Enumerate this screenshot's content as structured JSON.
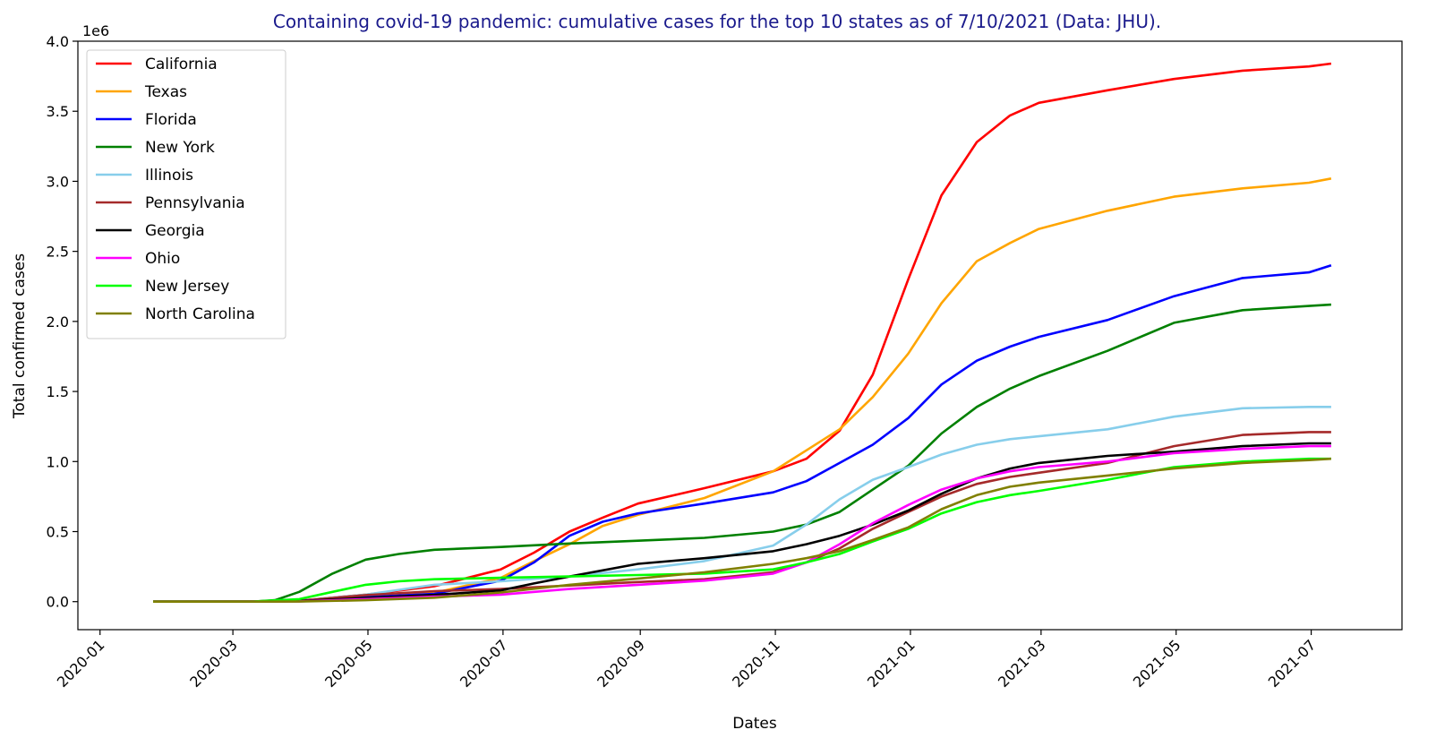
{
  "chart_data": {
    "type": "line",
    "title": "Containing covid-19 pandemic: cumulative cases for the top 10 states as of 7/10/2021 (Data: JHU).",
    "title_color": "#1a1a8c",
    "xlabel": "Dates",
    "ylabel": "Total confirmed cases",
    "y_scale_label": "1e6",
    "ylim": [
      -0.2,
      4.0
    ],
    "xlim": [
      "2019-12-22",
      "2021-08-11"
    ],
    "x_ticks": [
      "2020-01",
      "2020-03",
      "2020-05",
      "2020-07",
      "2020-09",
      "2020-11",
      "2021-01",
      "2021-03",
      "2021-05",
      "2021-07"
    ],
    "y_ticks": [
      "0.0",
      "0.5",
      "1.0",
      "1.5",
      "2.0",
      "2.5",
      "3.0",
      "3.5",
      "4.0"
    ],
    "legend_position": "upper-left",
    "series": [
      {
        "name": "California",
        "color": "#ff0000",
        "points": [
          [
            "2020-01-25",
            0
          ],
          [
            "2020-03-10",
            0.002
          ],
          [
            "2020-03-31",
            0.008
          ],
          [
            "2020-04-30",
            0.05
          ],
          [
            "2020-05-31",
            0.11
          ],
          [
            "2020-06-30",
            0.23
          ],
          [
            "2020-07-15",
            0.35
          ],
          [
            "2020-07-31",
            0.5
          ],
          [
            "2020-08-15",
            0.6
          ],
          [
            "2020-08-31",
            0.7
          ],
          [
            "2020-09-30",
            0.81
          ],
          [
            "2020-10-31",
            0.93
          ],
          [
            "2020-11-15",
            1.02
          ],
          [
            "2020-11-30",
            1.22
          ],
          [
            "2020-12-15",
            1.62
          ],
          [
            "2020-12-31",
            2.3
          ],
          [
            "2021-01-15",
            2.9
          ],
          [
            "2021-01-31",
            3.28
          ],
          [
            "2021-02-15",
            3.47
          ],
          [
            "2021-02-28",
            3.56
          ],
          [
            "2021-03-31",
            3.65
          ],
          [
            "2021-04-30",
            3.73
          ],
          [
            "2021-05-31",
            3.79
          ],
          [
            "2021-06-30",
            3.82
          ],
          [
            "2021-07-10",
            3.84
          ]
        ]
      },
      {
        "name": "Texas",
        "color": "#ffa500",
        "points": [
          [
            "2020-01-25",
            0
          ],
          [
            "2020-03-10",
            0
          ],
          [
            "2020-03-31",
            0.003
          ],
          [
            "2020-04-30",
            0.028
          ],
          [
            "2020-05-31",
            0.063
          ],
          [
            "2020-06-30",
            0.17
          ],
          [
            "2020-07-15",
            0.29
          ],
          [
            "2020-07-31",
            0.41
          ],
          [
            "2020-08-15",
            0.54
          ],
          [
            "2020-08-31",
            0.62
          ],
          [
            "2020-09-30",
            0.74
          ],
          [
            "2020-10-31",
            0.93
          ],
          [
            "2020-11-15",
            1.08
          ],
          [
            "2020-11-30",
            1.23
          ],
          [
            "2020-12-15",
            1.46
          ],
          [
            "2020-12-31",
            1.77
          ],
          [
            "2021-01-15",
            2.13
          ],
          [
            "2021-01-31",
            2.43
          ],
          [
            "2021-02-15",
            2.56
          ],
          [
            "2021-02-28",
            2.66
          ],
          [
            "2021-03-31",
            2.79
          ],
          [
            "2021-04-30",
            2.89
          ],
          [
            "2021-05-31",
            2.95
          ],
          [
            "2021-06-30",
            2.99
          ],
          [
            "2021-07-10",
            3.02
          ]
        ]
      },
      {
        "name": "Florida",
        "color": "#0000ff",
        "points": [
          [
            "2020-01-25",
            0
          ],
          [
            "2020-03-10",
            0
          ],
          [
            "2020-03-31",
            0.007
          ],
          [
            "2020-04-30",
            0.033
          ],
          [
            "2020-05-31",
            0.056
          ],
          [
            "2020-06-30",
            0.15
          ],
          [
            "2020-07-15",
            0.28
          ],
          [
            "2020-07-31",
            0.47
          ],
          [
            "2020-08-15",
            0.57
          ],
          [
            "2020-08-31",
            0.63
          ],
          [
            "2020-09-30",
            0.7
          ],
          [
            "2020-10-31",
            0.78
          ],
          [
            "2020-11-15",
            0.86
          ],
          [
            "2020-11-30",
            0.99
          ],
          [
            "2020-12-15",
            1.12
          ],
          [
            "2020-12-31",
            1.31
          ],
          [
            "2021-01-15",
            1.55
          ],
          [
            "2021-01-31",
            1.72
          ],
          [
            "2021-02-15",
            1.82
          ],
          [
            "2021-02-28",
            1.89
          ],
          [
            "2021-03-31",
            2.01
          ],
          [
            "2021-04-30",
            2.18
          ],
          [
            "2021-05-31",
            2.31
          ],
          [
            "2021-06-30",
            2.35
          ],
          [
            "2021-07-10",
            2.4
          ]
        ]
      },
      {
        "name": "New York",
        "color": "#008000",
        "points": [
          [
            "2020-01-25",
            0
          ],
          [
            "2020-03-10",
            0
          ],
          [
            "2020-03-20",
            0.01
          ],
          [
            "2020-03-31",
            0.07
          ],
          [
            "2020-04-15",
            0.2
          ],
          [
            "2020-04-30",
            0.3
          ],
          [
            "2020-05-15",
            0.34
          ],
          [
            "2020-05-31",
            0.37
          ],
          [
            "2020-06-30",
            0.39
          ],
          [
            "2020-07-31",
            0.415
          ],
          [
            "2020-08-31",
            0.435
          ],
          [
            "2020-09-30",
            0.455
          ],
          [
            "2020-10-31",
            0.5
          ],
          [
            "2020-11-15",
            0.55
          ],
          [
            "2020-11-30",
            0.64
          ],
          [
            "2020-12-15",
            0.8
          ],
          [
            "2020-12-31",
            0.97
          ],
          [
            "2021-01-15",
            1.2
          ],
          [
            "2021-01-31",
            1.39
          ],
          [
            "2021-02-15",
            1.52
          ],
          [
            "2021-02-28",
            1.61
          ],
          [
            "2021-03-31",
            1.79
          ],
          [
            "2021-04-30",
            1.99
          ],
          [
            "2021-05-31",
            2.08
          ],
          [
            "2021-06-30",
            2.11
          ],
          [
            "2021-07-10",
            2.12
          ]
        ]
      },
      {
        "name": "Illinois",
        "color": "#87ceeb",
        "points": [
          [
            "2020-01-25",
            0
          ],
          [
            "2020-03-10",
            0
          ],
          [
            "2020-03-31",
            0.006
          ],
          [
            "2020-04-30",
            0.05
          ],
          [
            "2020-05-31",
            0.12
          ],
          [
            "2020-06-30",
            0.145
          ],
          [
            "2020-07-31",
            0.18
          ],
          [
            "2020-08-31",
            0.23
          ],
          [
            "2020-09-30",
            0.29
          ],
          [
            "2020-10-31",
            0.4
          ],
          [
            "2020-11-15",
            0.55
          ],
          [
            "2020-11-30",
            0.73
          ],
          [
            "2020-12-15",
            0.87
          ],
          [
            "2020-12-31",
            0.96
          ],
          [
            "2021-01-15",
            1.05
          ],
          [
            "2021-01-31",
            1.12
          ],
          [
            "2021-02-15",
            1.16
          ],
          [
            "2021-02-28",
            1.18
          ],
          [
            "2021-03-31",
            1.23
          ],
          [
            "2021-04-30",
            1.32
          ],
          [
            "2021-05-31",
            1.38
          ],
          [
            "2021-06-30",
            1.39
          ],
          [
            "2021-07-10",
            1.39
          ]
        ]
      },
      {
        "name": "Pennsylvania",
        "color": "#a52a2a",
        "points": [
          [
            "2020-01-25",
            0
          ],
          [
            "2020-03-10",
            0
          ],
          [
            "2020-03-31",
            0.005
          ],
          [
            "2020-04-30",
            0.047
          ],
          [
            "2020-05-31",
            0.075
          ],
          [
            "2020-06-30",
            0.09
          ],
          [
            "2020-07-31",
            0.115
          ],
          [
            "2020-08-31",
            0.14
          ],
          [
            "2020-09-30",
            0.16
          ],
          [
            "2020-10-31",
            0.21
          ],
          [
            "2020-11-15",
            0.28
          ],
          [
            "2020-11-30",
            0.38
          ],
          [
            "2020-12-15",
            0.52
          ],
          [
            "2020-12-31",
            0.64
          ],
          [
            "2021-01-15",
            0.75
          ],
          [
            "2021-01-31",
            0.84
          ],
          [
            "2021-02-15",
            0.89
          ],
          [
            "2021-02-28",
            0.92
          ],
          [
            "2021-03-31",
            0.99
          ],
          [
            "2021-04-30",
            1.11
          ],
          [
            "2021-05-31",
            1.19
          ],
          [
            "2021-06-30",
            1.21
          ],
          [
            "2021-07-10",
            1.21
          ]
        ]
      },
      {
        "name": "Georgia",
        "color": "#000000",
        "points": [
          [
            "2020-01-25",
            0
          ],
          [
            "2020-03-10",
            0
          ],
          [
            "2020-03-31",
            0.004
          ],
          [
            "2020-04-30",
            0.027
          ],
          [
            "2020-05-31",
            0.048
          ],
          [
            "2020-06-30",
            0.08
          ],
          [
            "2020-07-15",
            0.13
          ],
          [
            "2020-07-31",
            0.18
          ],
          [
            "2020-08-31",
            0.27
          ],
          [
            "2020-09-30",
            0.31
          ],
          [
            "2020-10-31",
            0.36
          ],
          [
            "2020-11-15",
            0.41
          ],
          [
            "2020-11-30",
            0.47
          ],
          [
            "2020-12-15",
            0.55
          ],
          [
            "2020-12-31",
            0.65
          ],
          [
            "2021-01-15",
            0.77
          ],
          [
            "2021-01-31",
            0.88
          ],
          [
            "2021-02-15",
            0.95
          ],
          [
            "2021-02-28",
            0.99
          ],
          [
            "2021-03-31",
            1.04
          ],
          [
            "2021-04-30",
            1.07
          ],
          [
            "2021-05-31",
            1.11
          ],
          [
            "2021-06-30",
            1.13
          ],
          [
            "2021-07-10",
            1.13
          ]
        ]
      },
      {
        "name": "Ohio",
        "color": "#ff00ff",
        "points": [
          [
            "2020-01-25",
            0
          ],
          [
            "2020-03-10",
            0
          ],
          [
            "2020-03-31",
            0.002
          ],
          [
            "2020-04-30",
            0.018
          ],
          [
            "2020-05-31",
            0.036
          ],
          [
            "2020-06-30",
            0.05
          ],
          [
            "2020-07-31",
            0.09
          ],
          [
            "2020-08-31",
            0.12
          ],
          [
            "2020-09-30",
            0.15
          ],
          [
            "2020-10-31",
            0.2
          ],
          [
            "2020-11-15",
            0.28
          ],
          [
            "2020-11-30",
            0.41
          ],
          [
            "2020-12-15",
            0.56
          ],
          [
            "2020-12-31",
            0.69
          ],
          [
            "2021-01-15",
            0.8
          ],
          [
            "2021-01-31",
            0.88
          ],
          [
            "2021-02-15",
            0.93
          ],
          [
            "2021-02-28",
            0.96
          ],
          [
            "2021-03-31",
            1.0
          ],
          [
            "2021-04-30",
            1.06
          ],
          [
            "2021-05-31",
            1.09
          ],
          [
            "2021-06-30",
            1.11
          ],
          [
            "2021-07-10",
            1.11
          ]
        ]
      },
      {
        "name": "New Jersey",
        "color": "#00ff00",
        "points": [
          [
            "2020-01-25",
            0
          ],
          [
            "2020-03-10",
            0
          ],
          [
            "2020-03-31",
            0.018
          ],
          [
            "2020-04-15",
            0.07
          ],
          [
            "2020-04-30",
            0.12
          ],
          [
            "2020-05-15",
            0.145
          ],
          [
            "2020-05-31",
            0.16
          ],
          [
            "2020-06-30",
            0.17
          ],
          [
            "2020-07-31",
            0.18
          ],
          [
            "2020-08-31",
            0.19
          ],
          [
            "2020-09-30",
            0.2
          ],
          [
            "2020-10-31",
            0.23
          ],
          [
            "2020-11-15",
            0.28
          ],
          [
            "2020-11-30",
            0.34
          ],
          [
            "2020-12-15",
            0.43
          ],
          [
            "2020-12-31",
            0.52
          ],
          [
            "2021-01-15",
            0.63
          ],
          [
            "2021-01-31",
            0.71
          ],
          [
            "2021-02-15",
            0.76
          ],
          [
            "2021-02-28",
            0.79
          ],
          [
            "2021-03-31",
            0.87
          ],
          [
            "2021-04-30",
            0.96
          ],
          [
            "2021-05-31",
            1.0
          ],
          [
            "2021-06-30",
            1.02
          ],
          [
            "2021-07-10",
            1.02
          ]
        ]
      },
      {
        "name": "North Carolina",
        "color": "#808000",
        "points": [
          [
            "2020-01-25",
            0
          ],
          [
            "2020-03-10",
            0
          ],
          [
            "2020-03-31",
            0.001
          ],
          [
            "2020-04-30",
            0.01
          ],
          [
            "2020-05-31",
            0.028
          ],
          [
            "2020-06-30",
            0.065
          ],
          [
            "2020-07-31",
            0.12
          ],
          [
            "2020-08-31",
            0.165
          ],
          [
            "2020-09-30",
            0.21
          ],
          [
            "2020-10-31",
            0.27
          ],
          [
            "2020-11-15",
            0.31
          ],
          [
            "2020-11-30",
            0.36
          ],
          [
            "2020-12-15",
            0.44
          ],
          [
            "2020-12-31",
            0.53
          ],
          [
            "2021-01-15",
            0.66
          ],
          [
            "2021-01-31",
            0.76
          ],
          [
            "2021-02-15",
            0.82
          ],
          [
            "2021-02-28",
            0.85
          ],
          [
            "2021-03-31",
            0.9
          ],
          [
            "2021-04-30",
            0.95
          ],
          [
            "2021-05-31",
            0.99
          ],
          [
            "2021-06-30",
            1.01
          ],
          [
            "2021-07-10",
            1.02
          ]
        ]
      }
    ]
  }
}
